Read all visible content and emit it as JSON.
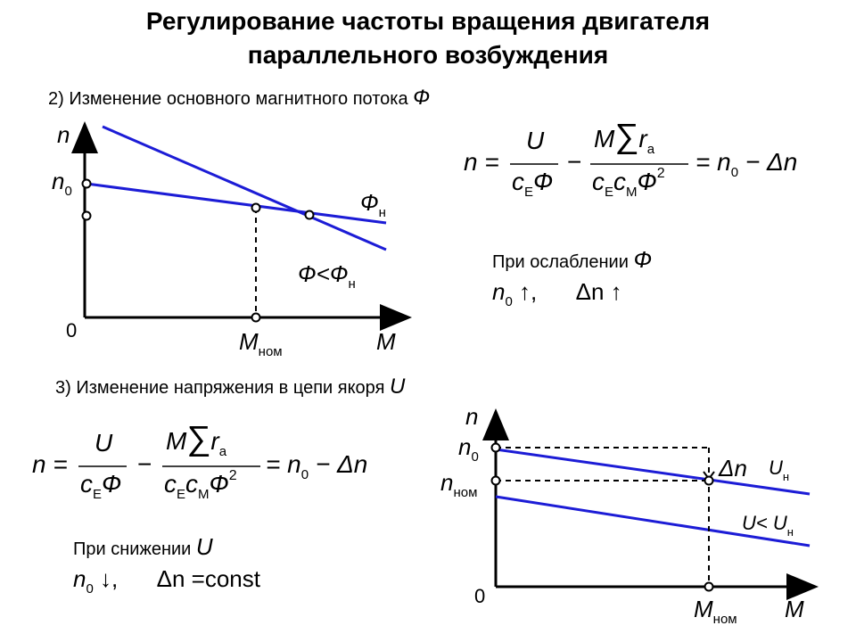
{
  "title": {
    "line1": "Регулирование частоты вращения двигателя",
    "line2": "параллельного возбуждения"
  },
  "section2": {
    "label": "2) Изменение основного магнитного потока",
    "symbol": "Ф",
    "graph": {
      "y_axis": "n",
      "y_axis_n0": "n",
      "y_axis_n0_sub": "0",
      "origin": "0",
      "x_axis": "M",
      "x_tick": "M",
      "x_tick_sub": "ном",
      "line1_label": "Ф",
      "line1_label_sub": "н",
      "line2_label": "Ф<Ф",
      "line2_label_sub": "н"
    },
    "note_title": "При ослаблении",
    "note_symbol": "Ф",
    "note_line": "n",
    "note_line_sub": "0",
    "note_rest": "↑,      Δn ↑"
  },
  "formula": {
    "lhs": "n =",
    "frac1_num": "U",
    "frac1_den_c": "c",
    "frac1_den_sub": "E",
    "frac1_den_phi": "Ф",
    "minus": "−",
    "frac2_num_m": "M",
    "frac2_num_sum": "∑",
    "frac2_num_r": "r",
    "frac2_num_sub": "a",
    "frac2_den_c1": "c",
    "frac2_den_sub1": "E",
    "frac2_den_c2": "c",
    "frac2_den_sub2": "M",
    "frac2_den_phi": "Ф",
    "frac2_den_sup": "2",
    "rhs_eq": "= n",
    "rhs_sub": "0",
    "rhs_rest": "− Δn"
  },
  "section3": {
    "label": "3) Изменение напряжения в цепи якоря",
    "symbol": "U",
    "graph": {
      "y_axis": "n",
      "n0": "n",
      "n0_sub": "0",
      "nnom": "n",
      "nnom_sub": "ном",
      "origin": "0",
      "x_axis": "M",
      "x_tick": "M",
      "x_tick_sub": "ном",
      "delta_label": "Δn",
      "line1_label": "U",
      "line1_label_sub": "н",
      "line2_label": "U< U",
      "line2_label_sub": "н"
    },
    "note_title": "При снижении",
    "note_symbol": "U",
    "note_line": "n",
    "note_line_sub": "0",
    "note_rest": "↓,      Δn =const"
  },
  "colors": {
    "lines": "#1c1cd6",
    "axes": "#000000"
  }
}
